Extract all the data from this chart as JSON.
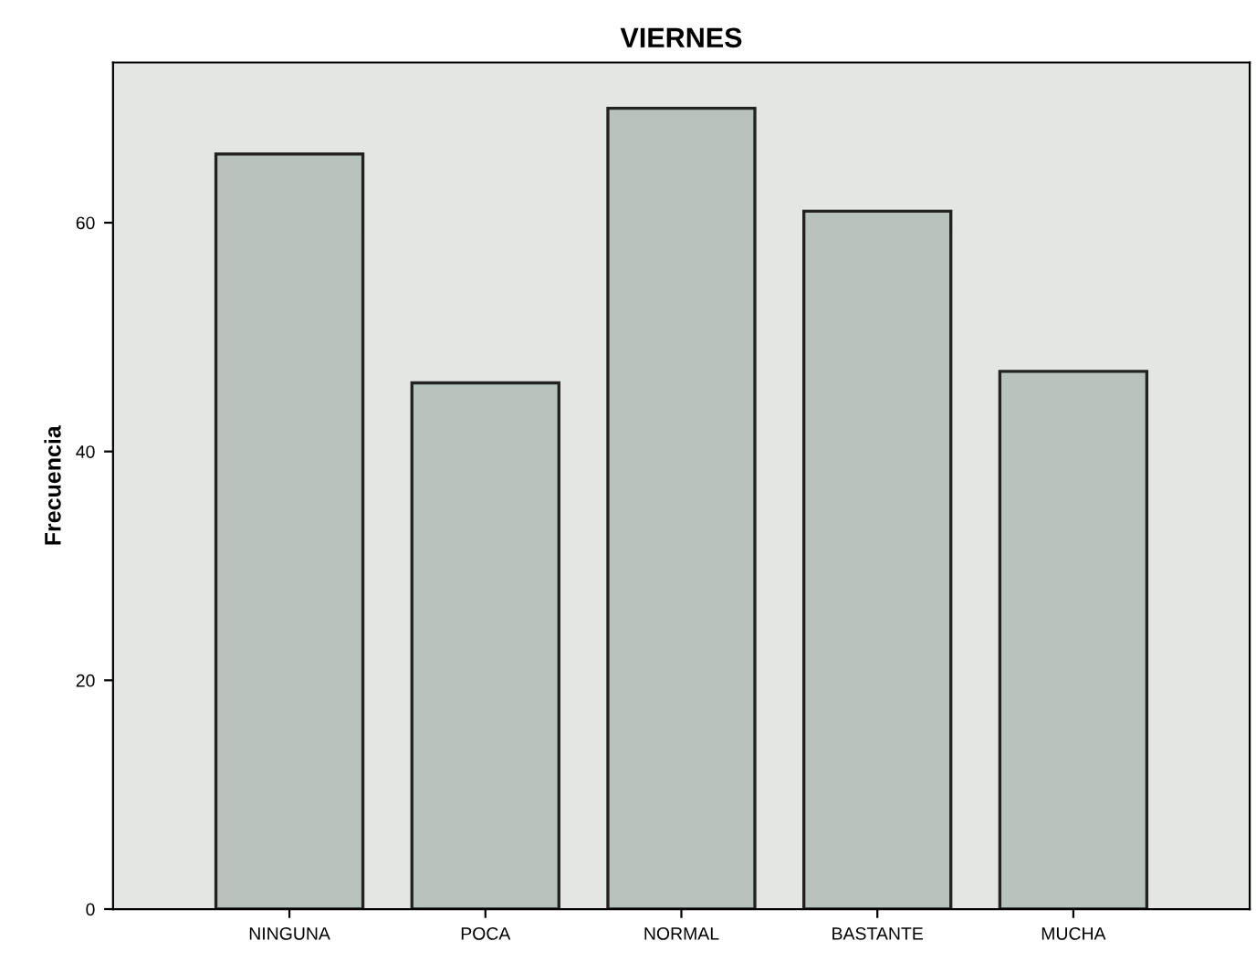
{
  "chart_data": {
    "type": "bar",
    "title": "VIERNES",
    "ylabel": "Frecuencia",
    "categories": [
      "NINGUNA",
      "POCA",
      "NORMAL",
      "BASTANTE",
      "MUCHA"
    ],
    "values": [
      66,
      46,
      70,
      61,
      47
    ],
    "color": "#b9c3bd",
    "ylim": [
      0,
      74
    ],
    "yticks": [
      0,
      20,
      40,
      60
    ],
    "grid": false
  }
}
